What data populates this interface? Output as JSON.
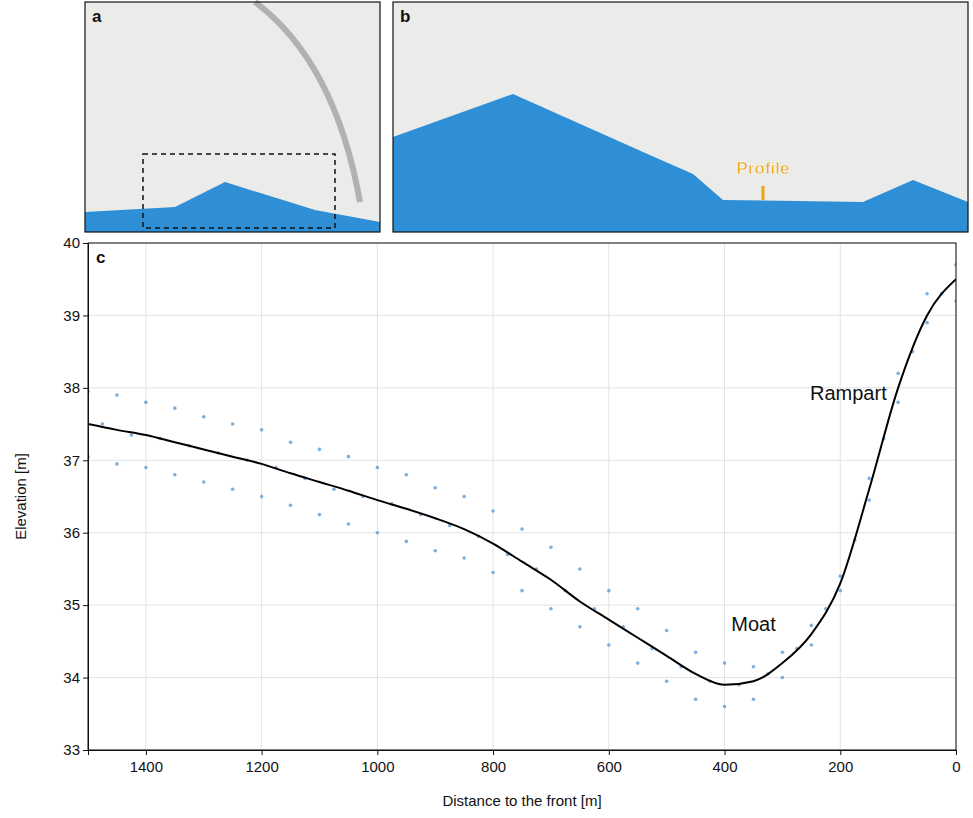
{
  "panels": [
    {
      "label": "a"
    },
    {
      "label": "b",
      "annotation": "Profile"
    }
  ],
  "chart_data": {
    "type": "scatter",
    "panel_label": "c",
    "x_label": "Distance to the front [m]",
    "y_label": "Elevation [m]",
    "xlim": [
      1500,
      0
    ],
    "xticks": [
      1400,
      1200,
      1000,
      800,
      600,
      400,
      200,
      0
    ],
    "ylim": [
      33,
      40
    ],
    "yticks": [
      33,
      34,
      35,
      36,
      37,
      38,
      39,
      40
    ],
    "grid": true,
    "annotations": [
      {
        "text": "Rampart",
        "x": 186,
        "y": 37.9
      },
      {
        "text": "Moat",
        "x": 350,
        "y": 34.72
      }
    ],
    "series": [
      {
        "type": "scatter",
        "color": "#5b9bd5",
        "marker": "circle",
        "x": [
          1500,
          1450,
          1400,
          1350,
          1300,
          1250,
          1200,
          1150,
          1100,
          1050,
          1000,
          950,
          900,
          850,
          800,
          750,
          700,
          650,
          600,
          550,
          500,
          450,
          400,
          350,
          300,
          250,
          200,
          150,
          100,
          50,
          0,
          1475,
          1425,
          1375,
          1325,
          1275,
          1225,
          1175,
          1125,
          1075,
          1025,
          975,
          925,
          875,
          825,
          775,
          725,
          675,
          625,
          575,
          525,
          475,
          425,
          375,
          325,
          275,
          225,
          175,
          125,
          75,
          25,
          1500,
          1450,
          1400,
          1350,
          1300,
          1250,
          1200,
          1150,
          1100,
          1050,
          1000,
          950,
          900,
          850,
          800,
          750,
          700,
          650,
          600,
          550,
          500,
          450,
          400,
          350,
          300,
          250,
          200,
          150,
          100,
          50,
          0
        ],
        "values": [
          37.95,
          37.9,
          37.8,
          37.72,
          37.6,
          37.5,
          37.42,
          37.25,
          37.15,
          37.05,
          36.9,
          36.8,
          36.62,
          36.5,
          36.3,
          36.05,
          35.8,
          35.5,
          35.2,
          34.95,
          34.65,
          34.35,
          34.2,
          34.15,
          34.35,
          34.72,
          35.4,
          36.75,
          38.2,
          39.3,
          39.7,
          37.5,
          37.35,
          37.3,
          37.2,
          37.1,
          37.0,
          36.9,
          36.75,
          36.6,
          36.5,
          36.4,
          36.25,
          36.1,
          35.95,
          35.7,
          35.5,
          35.2,
          34.95,
          34.7,
          34.4,
          34.15,
          33.95,
          33.9,
          34.05,
          34.4,
          34.95,
          35.9,
          37.3,
          38.5,
          39.3,
          37.05,
          36.95,
          36.9,
          36.8,
          36.7,
          36.6,
          36.5,
          36.38,
          36.25,
          36.12,
          36.0,
          35.88,
          35.75,
          35.65,
          35.45,
          35.2,
          34.95,
          34.7,
          34.45,
          34.2,
          33.95,
          33.7,
          33.6,
          33.7,
          34.0,
          34.45,
          35.2,
          36.45,
          37.8,
          38.9,
          39.2
        ]
      },
      {
        "type": "line",
        "color": "#000000",
        "line_style": "solid",
        "x": [
          1500,
          1450,
          1400,
          1350,
          1300,
          1250,
          1200,
          1150,
          1100,
          1050,
          1000,
          950,
          900,
          850,
          800,
          750,
          700,
          650,
          600,
          550,
          500,
          450,
          400,
          350,
          300,
          250,
          200,
          150,
          100,
          50,
          0
        ],
        "values": [
          37.5,
          37.42,
          37.35,
          37.25,
          37.15,
          37.05,
          36.95,
          36.82,
          36.7,
          36.58,
          36.45,
          36.33,
          36.2,
          36.05,
          35.85,
          35.6,
          35.35,
          35.05,
          34.8,
          34.55,
          34.3,
          34.05,
          33.9,
          33.95,
          34.2,
          34.6,
          35.3,
          36.6,
          38.0,
          39.0,
          39.5
        ]
      }
    ]
  }
}
